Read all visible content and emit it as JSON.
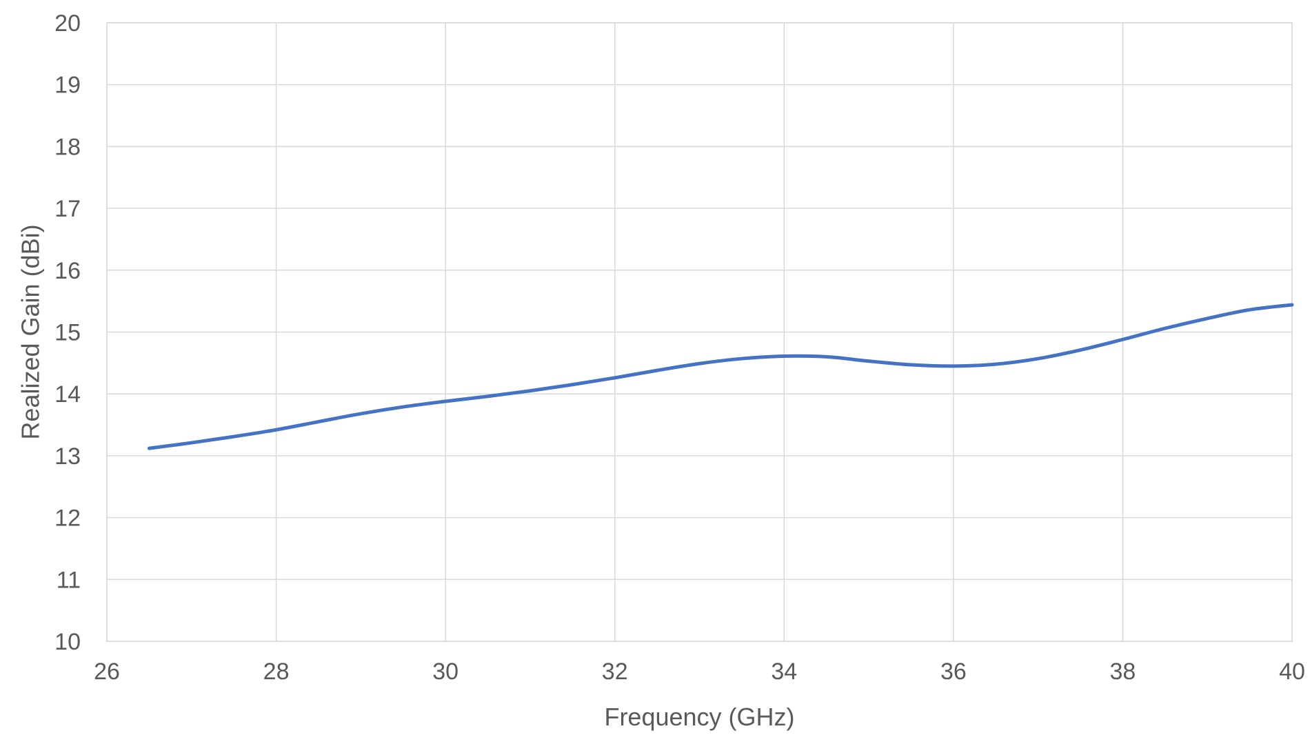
{
  "chart_data": {
    "type": "line",
    "title": "",
    "xlabel": "Frequency (GHz)",
    "ylabel": "Realized Gain (dBi)",
    "xlim": [
      26,
      40
    ],
    "ylim": [
      10,
      20
    ],
    "xticks": [
      "26",
      "28",
      "30",
      "32",
      "34",
      "36",
      "38",
      "40"
    ],
    "yticks": [
      "10",
      "11",
      "12",
      "13",
      "14",
      "15",
      "16",
      "17",
      "18",
      "19",
      "20"
    ],
    "grid": true,
    "legend": "none",
    "series": [
      {
        "color": "#4472C4",
        "x": [
          26.5,
          27,
          27.5,
          28,
          28.5,
          29,
          29.5,
          30,
          30.5,
          31,
          31.5,
          32,
          32.5,
          33,
          33.5,
          34,
          34.5,
          35,
          35.5,
          36,
          36.5,
          37,
          37.5,
          38,
          38.5,
          39,
          39.5,
          40
        ],
        "y": [
          13.12,
          13.21,
          13.31,
          13.42,
          13.55,
          13.68,
          13.79,
          13.88,
          13.96,
          14.05,
          14.15,
          14.26,
          14.38,
          14.49,
          14.57,
          14.61,
          14.6,
          14.53,
          14.47,
          14.45,
          14.48,
          14.57,
          14.71,
          14.88,
          15.06,
          15.22,
          15.36,
          15.44
        ]
      }
    ]
  }
}
